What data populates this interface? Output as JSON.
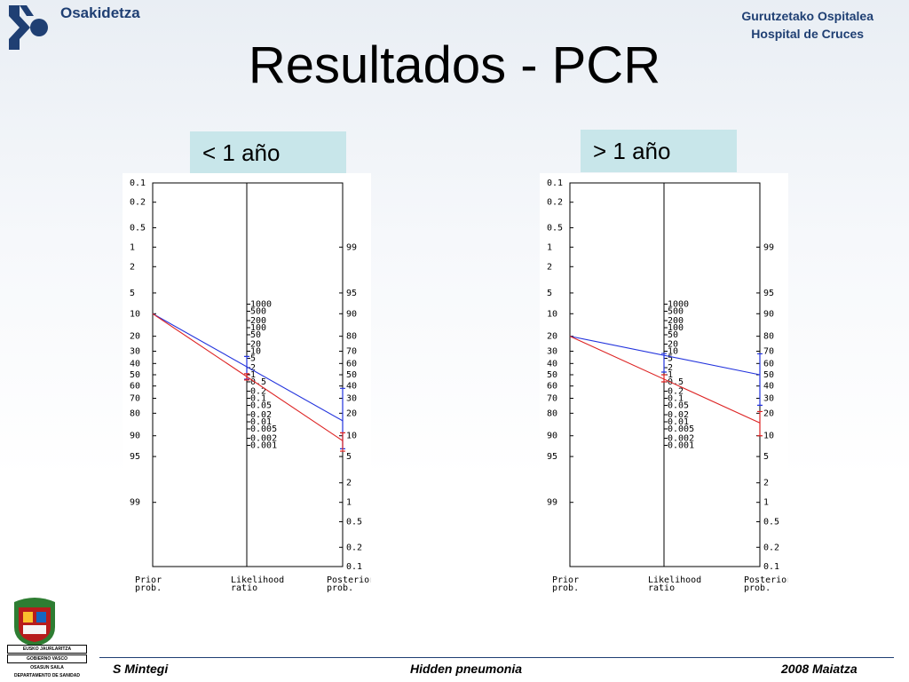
{
  "header": {
    "brand": "Osakidetza",
    "hospital_line1": "Gurutzetako Ospitalea",
    "hospital_line2": "Hospital de Cruces"
  },
  "slide": {
    "title": "Resultados - PCR"
  },
  "panels": [
    {
      "label": "< 1 año"
    },
    {
      "label": "> 1 año"
    }
  ],
  "seal_captions": [
    "EUSKO JAURLARITZA",
    "GOBIERNO VASCO",
    "OSASUN SAILA",
    "DEPARTAMENTO DE SANIDAD"
  ],
  "footer": {
    "author": "S Mintegi",
    "topic": "Hidden pneumonia",
    "date": "2008 Maiatza"
  },
  "colors": {
    "brand_blue": "#1f3f73",
    "label_bg": "#c8e6ea",
    "series_blue": "#2233dd",
    "series_red": "#dd2222"
  },
  "chart_data": [
    {
      "type": "line",
      "subtype": "fagan-nomogram",
      "axes": [
        {
          "label": "Prior prob.",
          "ticks": [
            "0.1",
            "0.2",
            "0.5",
            "1",
            "2",
            "5",
            "10",
            "20",
            "30",
            "40",
            "50",
            "60",
            "70",
            "80",
            "90",
            "95",
            "99"
          ]
        },
        {
          "label": "Likelihood ratio",
          "ticks": [
            "1000",
            "500",
            "200",
            "100",
            "50",
            "20",
            "10",
            "5",
            "2",
            "1",
            "0.5",
            "0.2",
            "0.1",
            "0.05",
            "0.02",
            "0.01",
            "0.005",
            "0.002",
            "0.001"
          ]
        },
        {
          "label": "Posterior prob.",
          "ticks": [
            "99",
            "95",
            "90",
            "80",
            "70",
            "60",
            "50",
            "40",
            "30",
            "20",
            "10",
            "5",
            "2",
            "1",
            "0.5",
            "0.2",
            "0.1"
          ]
        }
      ],
      "prior_probability": 10,
      "series": [
        {
          "color": "#2233dd",
          "prior": 10,
          "lr": 1.7,
          "posterior": 16,
          "lr_range": [
            0.65,
            6
          ],
          "posterior_range": [
            6.5,
            38
          ]
        },
        {
          "color": "#dd2222",
          "prior": 10,
          "lr": 0.85,
          "posterior": 8.5,
          "lr_range": [
            0.6,
            1.1
          ],
          "posterior_range": [
            6,
            11
          ]
        }
      ]
    },
    {
      "type": "line",
      "subtype": "fagan-nomogram",
      "axes": [
        {
          "label": "Prior prob.",
          "ticks": [
            "0.1",
            "0.2",
            "0.5",
            "1",
            "2",
            "5",
            "10",
            "20",
            "30",
            "40",
            "50",
            "60",
            "70",
            "80",
            "90",
            "95",
            "99"
          ]
        },
        {
          "label": "Likelihood ratio",
          "ticks": [
            "1000",
            "500",
            "200",
            "100",
            "50",
            "20",
            "10",
            "5",
            "2",
            "1",
            "0.5",
            "0.2",
            "0.1",
            "0.05",
            "0.02",
            "0.01",
            "0.005",
            "0.002",
            "0.001"
          ]
        },
        {
          "label": "Posterior prob.",
          "ticks": [
            "99",
            "95",
            "90",
            "80",
            "70",
            "60",
            "50",
            "40",
            "30",
            "20",
            "10",
            "5",
            "2",
            "1",
            "0.5",
            "0.2",
            "0.1"
          ]
        }
      ],
      "prior_probability": 20,
      "series": [
        {
          "color": "#2233dd",
          "prior": 20,
          "lr": 4,
          "posterior": 50,
          "lr_range": [
            1.3,
            8
          ],
          "posterior_range": [
            25,
            68
          ]
        },
        {
          "color": "#dd2222",
          "prior": 20,
          "lr": 0.7,
          "posterior": 15,
          "lr_range": [
            0.5,
            1
          ],
          "posterior_range": [
            10,
            21
          ]
        }
      ]
    }
  ]
}
